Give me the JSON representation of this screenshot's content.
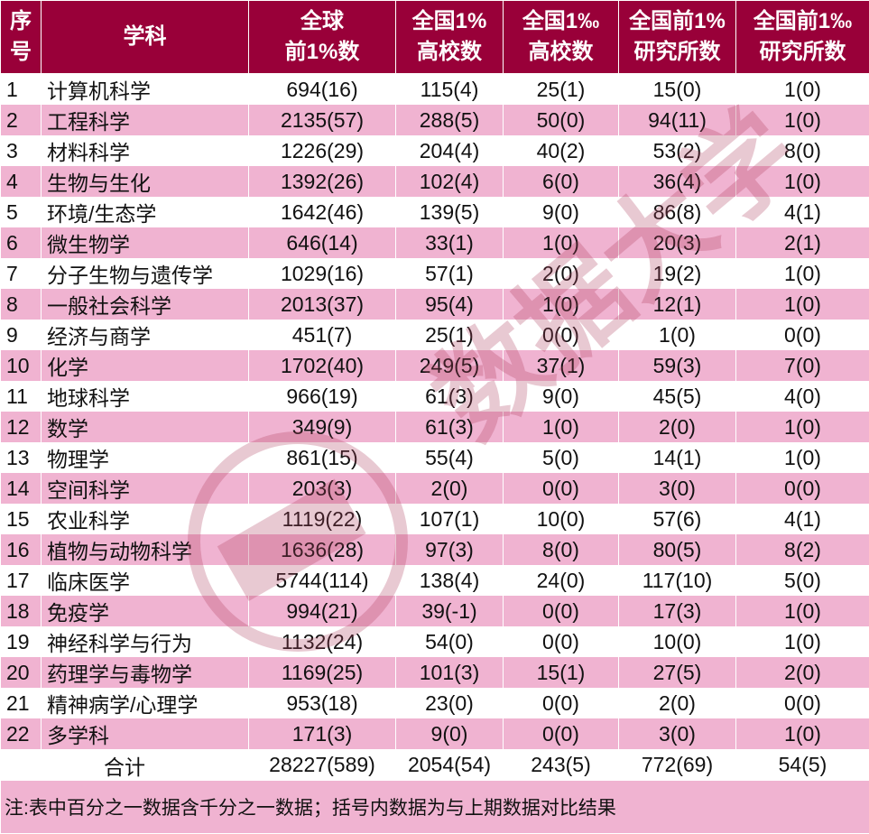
{
  "header": {
    "columns": [
      "序号",
      "学科",
      "全球\n前1%数",
      "全国1%\n高校数",
      "全国1‰\n高校数",
      "全国前1%\n研究所数",
      "全国前1‰\n研究所数"
    ],
    "col_lines": [
      [
        "序",
        "号"
      ],
      [
        "学科"
      ],
      [
        "全球",
        "前1%数"
      ],
      [
        "全国1%",
        "高校数"
      ],
      [
        "全国1‰",
        "高校数"
      ],
      [
        "全国前1%",
        "研究所数"
      ],
      [
        "全国前1‰",
        "研究所数"
      ]
    ]
  },
  "rows": [
    [
      "1",
      "计算机科学",
      "694(16)",
      "115(4)",
      "25(1)",
      "15(0)",
      "1(0)"
    ],
    [
      "2",
      "工程科学",
      "2135(57)",
      "288(5)",
      "50(0)",
      "94(11)",
      "1(0)"
    ],
    [
      "3",
      "材料科学",
      "1226(29)",
      "204(4)",
      "40(2)",
      "53(2)",
      "8(0)"
    ],
    [
      "4",
      "生物与生化",
      "1392(26)",
      "102(4)",
      "6(0)",
      "36(4)",
      "1(0)"
    ],
    [
      "5",
      "环境/生态学",
      "1642(46)",
      "139(5)",
      "9(0)",
      "86(8)",
      "4(1)"
    ],
    [
      "6",
      "微生物学",
      "646(14)",
      "33(1)",
      "1(0)",
      "20(3)",
      "2(1)"
    ],
    [
      "7",
      "分子生物与遗传学",
      "1029(16)",
      "57(1)",
      "2(0)",
      "19(2)",
      "1(0)"
    ],
    [
      "8",
      "一般社会科学",
      "2013(37)",
      "95(4)",
      "1(0)",
      "12(1)",
      "1(0)"
    ],
    [
      "9",
      "经济与商学",
      "451(7)",
      "25(1)",
      "0(0)",
      "1(0)",
      "0(0)"
    ],
    [
      "10",
      "化学",
      "1702(40)",
      "249(5)",
      "37(1)",
      "59(3)",
      "7(0)"
    ],
    [
      "11",
      "地球科学",
      "966(19)",
      "61(3)",
      "9(0)",
      "45(5)",
      "4(0)"
    ],
    [
      "12",
      "数学",
      "349(9)",
      "61(3)",
      "1(0)",
      "2(0)",
      "1(0)"
    ],
    [
      "13",
      "物理学",
      "861(15)",
      "55(4)",
      "5(0)",
      "14(1)",
      "1(0)"
    ],
    [
      "14",
      "空间科学",
      "203(3)",
      "2(0)",
      "0(0)",
      "3(0)",
      "0(0)"
    ],
    [
      "15",
      "农业科学",
      "1119(22)",
      "107(1)",
      "10(0)",
      "57(6)",
      "4(1)"
    ],
    [
      "16",
      "植物与动物科学",
      "1636(28)",
      "97(3)",
      "8(0)",
      "80(5)",
      "8(2)"
    ],
    [
      "17",
      "临床医学",
      "5744(114)",
      "138(4)",
      "24(0)",
      "117(10)",
      "5(0)"
    ],
    [
      "18",
      "免疫学",
      "994(21)",
      "39(-1)",
      "0(0)",
      "17(3)",
      "1(0)"
    ],
    [
      "19",
      "神经科学与行为",
      "1132(24)",
      "54(0)",
      "0(0)",
      "10(0)",
      "1(0)"
    ],
    [
      "20",
      "药理学与毒物学",
      "1169(25)",
      "101(3)",
      "15(1)",
      "27(5)",
      "2(0)"
    ],
    [
      "21",
      "精神病学/心理学",
      "953(18)",
      "23(0)",
      "0(0)",
      "2(0)",
      "0(0)"
    ],
    [
      "22",
      "多学科",
      "171(3)",
      "9(0)",
      "0(0)",
      "3(0)",
      "1(0)"
    ]
  ],
  "total": [
    "合计",
    "28227(589)",
    "2054(54)",
    "243(5)",
    "772(69)",
    "54(5)"
  ],
  "note": "注:表中百分之一数据含千分之一数据；括号内数据为与上期数据对比结果",
  "colors": {
    "header_bg": "#990039",
    "stripe": "#f0b3d1",
    "watermark": "#b0405f"
  }
}
